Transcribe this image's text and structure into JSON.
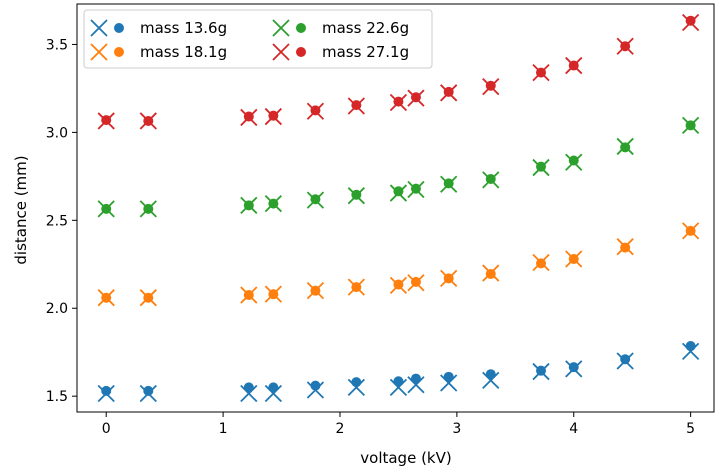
{
  "chart_data": {
    "type": "scatter",
    "title": "",
    "xlabel": "voltage (kV)",
    "ylabel": "distance (mm)",
    "xlim": [
      -0.25,
      5.2
    ],
    "ylim": [
      1.41,
      3.73
    ],
    "xticks": [
      0,
      1,
      2,
      3,
      4,
      5
    ],
    "yticks": [
      1.5,
      2.0,
      2.5,
      3.0,
      3.5
    ],
    "xtick_labels": [
      "0",
      "1",
      "2",
      "3",
      "4",
      "5"
    ],
    "ytick_labels": [
      "1.5",
      "2.0",
      "2.5",
      "3.0",
      "3.5"
    ],
    "grid": false,
    "legend_position": "top-left",
    "x": [
      0.0,
      0.36,
      1.22,
      1.43,
      1.79,
      2.14,
      2.5,
      2.65,
      2.93,
      3.29,
      3.72,
      4.0,
      4.44,
      5.0
    ],
    "series": [
      {
        "name": "mass 13.6g",
        "color": "#1f77b4",
        "measured": [
          1.53,
          1.53,
          1.55,
          1.55,
          1.56,
          1.58,
          1.585,
          1.6,
          1.61,
          1.625,
          1.645,
          1.665,
          1.71,
          1.785
        ],
        "model": [
          1.515,
          1.515,
          1.515,
          1.515,
          1.535,
          1.55,
          1.55,
          1.565,
          1.575,
          1.59,
          1.64,
          1.655,
          1.7,
          1.755
        ]
      },
      {
        "name": "mass 18.1g",
        "color": "#ff7f0e",
        "measured": [
          2.06,
          2.06,
          2.075,
          2.08,
          2.1,
          2.12,
          2.135,
          2.15,
          2.17,
          2.195,
          2.255,
          2.28,
          2.345,
          2.44
        ],
        "model": [
          2.06,
          2.06,
          2.075,
          2.08,
          2.1,
          2.12,
          2.13,
          2.145,
          2.17,
          2.2,
          2.26,
          2.28,
          2.35,
          2.44
        ]
      },
      {
        "name": "mass 22.6g",
        "color": "#2ca02c",
        "measured": [
          2.565,
          2.565,
          2.585,
          2.595,
          2.62,
          2.645,
          2.665,
          2.68,
          2.71,
          2.735,
          2.805,
          2.84,
          2.915,
          3.04
        ],
        "model": [
          2.565,
          2.565,
          2.585,
          2.595,
          2.615,
          2.64,
          2.655,
          2.675,
          2.705,
          2.73,
          2.8,
          2.83,
          2.92,
          3.04
        ]
      },
      {
        "name": "mass 27.1g",
        "color": "#d62728",
        "measured": [
          3.07,
          3.065,
          3.09,
          3.095,
          3.125,
          3.155,
          3.175,
          3.2,
          3.23,
          3.265,
          3.34,
          3.38,
          3.49,
          3.635
        ],
        "model": [
          3.065,
          3.065,
          3.085,
          3.09,
          3.12,
          3.15,
          3.17,
          3.195,
          3.225,
          3.26,
          3.34,
          3.38,
          3.49,
          3.625
        ]
      }
    ]
  }
}
